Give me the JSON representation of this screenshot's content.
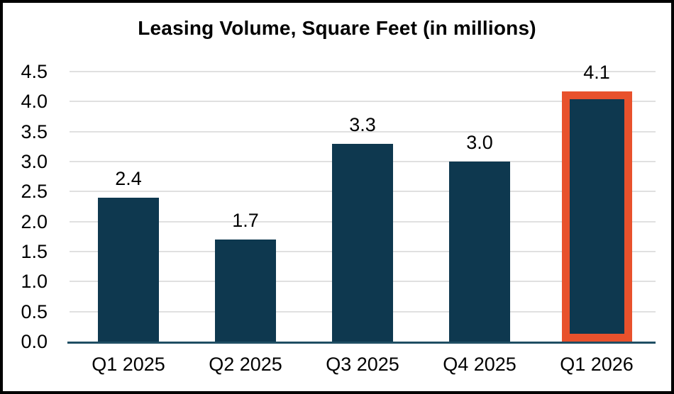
{
  "chart_data": {
    "type": "bar",
    "title": "Leasing Volume, Square Feet (in millions)",
    "categories": [
      "Q1 2025",
      "Q2 2025",
      "Q3 2025",
      "Q4 2025",
      "Q1 2026"
    ],
    "values": [
      2.4,
      1.7,
      3.3,
      3.0,
      4.1
    ],
    "data_labels": [
      "2.4",
      "1.7",
      "3.3",
      "3.0",
      "4.1"
    ],
    "highlighted_index": 4,
    "ylim": [
      0,
      4.5
    ],
    "ytick_step": 0.5,
    "ytick_labels": [
      "0.0",
      "0.5",
      "1.0",
      "1.5",
      "2.0",
      "2.5",
      "3.0",
      "3.5",
      "4.0",
      "4.5"
    ],
    "grid": true,
    "legend": false,
    "colors": {
      "bar": "#0E384F",
      "highlight_border": "#E8512C",
      "axis_line": "#1F4E63",
      "gridline": "#E0E0E0",
      "text": "#000000",
      "background": "#FFFFFF",
      "frame_border": "#000000"
    }
  }
}
